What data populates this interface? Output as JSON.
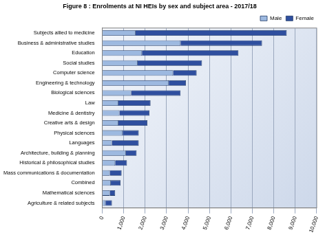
{
  "chart_data": {
    "type": "bar",
    "title": "Figure 8 : Enrolments at NI HEIs by sex and subject area - 2017/18",
    "orientation": "horizontal",
    "stacked": true,
    "grid": true,
    "legend": "upper right",
    "categories": [
      "Agriculture & related subjects",
      "Mathematical sciences",
      "Combined",
      "Mass communications & documentation",
      "Historical & philosophical studies",
      "Architecture, building & planning",
      "Languages",
      "Physical sciences",
      "Creative arts & design",
      "Medicine & dentistry",
      "Law",
      "Biological sciences",
      "Engineering & technology",
      "Computer science",
      "Social studies",
      "Education",
      "Business & administrative studies",
      "Subjects allied to medicine"
    ],
    "series": [
      {
        "name": "Male",
        "color": "#9db9e0",
        "values": [
          150,
          350,
          400,
          350,
          600,
          1100,
          450,
          950,
          750,
          800,
          750,
          1350,
          3100,
          3300,
          1650,
          1850,
          3650,
          1550
        ]
      },
      {
        "name": "Female",
        "color": "#2f4f9f",
        "values": [
          300,
          250,
          450,
          550,
          550,
          500,
          1250,
          750,
          1350,
          1400,
          1500,
          2300,
          800,
          1100,
          3000,
          4500,
          3800,
          7050
        ]
      }
    ],
    "xlim": [
      0,
      10000
    ],
    "xticks": [
      0,
      {
        "value": 1000,
        "label": "1,000"
      },
      {
        "value": 2000,
        "label": "2,000"
      },
      {
        "value": 3000,
        "label": "3,000"
      },
      {
        "value": 4000,
        "label": "4,000"
      },
      {
        "value": 5000,
        "label": "5,000"
      },
      {
        "value": 6000,
        "label": "6,000"
      },
      {
        "value": 7000,
        "label": "7,000"
      },
      {
        "value": 8000,
        "label": "8,000"
      },
      {
        "value": 9000,
        "label": "9,000"
      },
      {
        "value": 10000,
        "label": "10,000"
      }
    ]
  }
}
